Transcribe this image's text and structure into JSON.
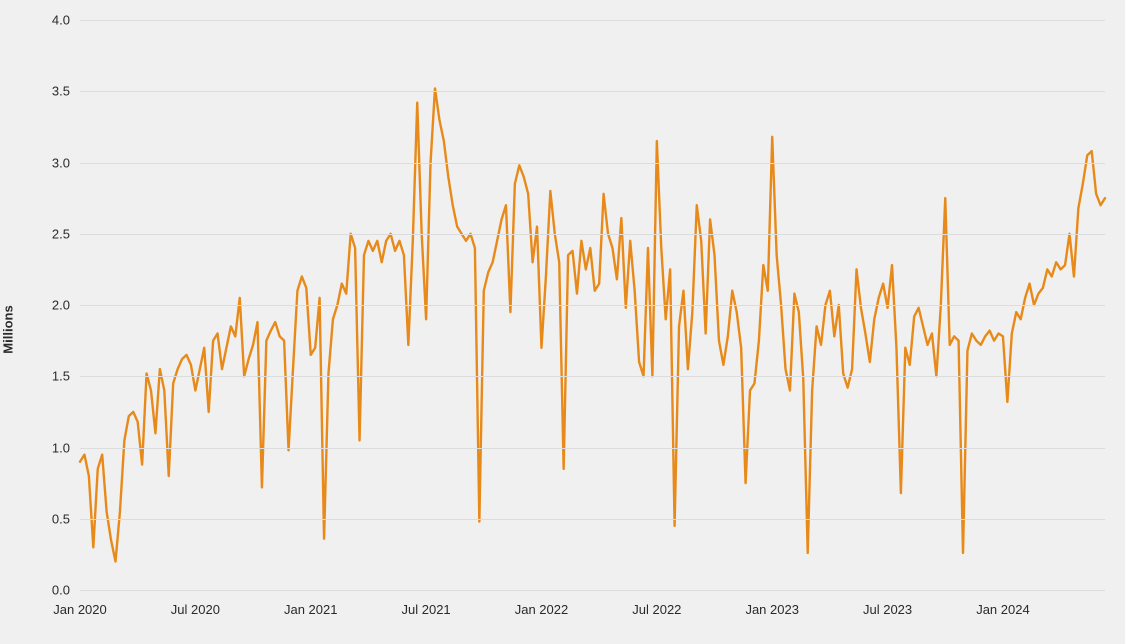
{
  "chart": {
    "type": "line",
    "background_color": "#f0f0f0",
    "grid_color": "#dcdcdc",
    "line_color": "#e88a1a",
    "line_width": 2.4,
    "label_color": "#2a2a2a",
    "tick_fontsize": 13,
    "ylabel": "Millions",
    "ylabel_fontsize": 13,
    "ylim": [
      0.0,
      4.0
    ],
    "ytick_step": 0.5,
    "ytick_labels": [
      "0.0",
      "0.5",
      "1.0",
      "1.5",
      "2.0",
      "2.5",
      "3.0",
      "3.5",
      "4.0"
    ],
    "xtick_labels": [
      "Jan 2020",
      "Jul 2020",
      "Jan 2021",
      "Jul 2021",
      "Jan 2022",
      "Jul 2022",
      "Jan 2023",
      "Jul 2023",
      "Jan 2024"
    ],
    "xtick_positions": [
      0,
      26,
      52,
      78,
      104,
      130,
      156,
      182,
      208
    ],
    "n_points": 232,
    "values": [
      0.9,
      0.95,
      0.8,
      0.3,
      0.85,
      0.95,
      0.55,
      0.35,
      0.2,
      0.55,
      1.05,
      1.22,
      1.25,
      1.18,
      0.88,
      1.52,
      1.4,
      1.1,
      1.55,
      1.4,
      0.8,
      1.45,
      1.55,
      1.62,
      1.65,
      1.58,
      1.4,
      1.55,
      1.7,
      1.25,
      1.75,
      1.8,
      1.55,
      1.7,
      1.85,
      1.78,
      2.05,
      1.5,
      1.62,
      1.72,
      1.88,
      0.72,
      1.75,
      1.82,
      1.88,
      1.78,
      1.75,
      0.98,
      1.55,
      2.1,
      2.2,
      2.12,
      1.65,
      1.7,
      2.05,
      0.36,
      1.52,
      1.9,
      2.0,
      2.15,
      2.08,
      2.5,
      2.4,
      1.05,
      2.35,
      2.45,
      2.38,
      2.45,
      2.3,
      2.45,
      2.5,
      2.38,
      2.45,
      2.35,
      1.72,
      2.45,
      3.42,
      2.5,
      1.9,
      3.0,
      3.52,
      3.3,
      3.15,
      2.9,
      2.7,
      2.55,
      2.5,
      2.45,
      2.5,
      2.4,
      0.48,
      2.1,
      2.23,
      2.3,
      2.45,
      2.6,
      2.7,
      1.95,
      2.85,
      2.98,
      2.9,
      2.78,
      2.3,
      2.55,
      1.7,
      2.2,
      2.8,
      2.5,
      2.3,
      0.85,
      2.35,
      2.38,
      2.08,
      2.45,
      2.25,
      2.4,
      2.1,
      2.15,
      2.78,
      2.5,
      2.4,
      2.18,
      2.61,
      1.98,
      2.45,
      2.1,
      1.6,
      1.5,
      2.4,
      1.5,
      3.15,
      2.4,
      1.9,
      2.25,
      0.45,
      1.85,
      2.1,
      1.55,
      1.95,
      2.7,
      2.45,
      1.8,
      2.6,
      2.35,
      1.75,
      1.58,
      1.78,
      2.1,
      1.95,
      1.7,
      0.75,
      1.4,
      1.45,
      1.75,
      2.28,
      2.1,
      3.18,
      2.35,
      2.0,
      1.55,
      1.4,
      2.08,
      1.95,
      1.48,
      0.26,
      1.4,
      1.85,
      1.72,
      2.0,
      2.1,
      1.78,
      2.0,
      1.52,
      1.42,
      1.55,
      2.25,
      1.98,
      1.8,
      1.6,
      1.9,
      2.05,
      2.15,
      1.98,
      2.28,
      1.7,
      0.68,
      1.7,
      1.58,
      1.92,
      1.98,
      1.85,
      1.72,
      1.8,
      1.5,
      2.0,
      2.75,
      1.72,
      1.78,
      1.75,
      0.26,
      1.68,
      1.8,
      1.75,
      1.72,
      1.78,
      1.82,
      1.75,
      1.8,
      1.78,
      1.32,
      1.8,
      1.95,
      1.9,
      2.05,
      2.15,
      2.0,
      2.08,
      2.12,
      2.25,
      2.2,
      2.3,
      2.25,
      2.28,
      2.5,
      2.2,
      2.68,
      2.85,
      3.05,
      3.08,
      2.78,
      2.7,
      2.75
    ]
  }
}
